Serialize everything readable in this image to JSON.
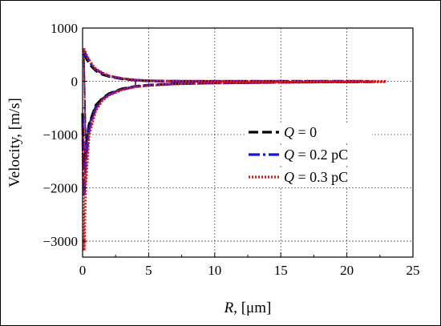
{
  "chart_data": {
    "type": "line",
    "xlabel": {
      "italic": "R",
      "rest": ", [μm]"
    },
    "ylabel": "Velocity, [m/s]",
    "xlim": [
      0,
      25
    ],
    "ylim": [
      -3300,
      1000
    ],
    "xticks": [
      0,
      5,
      10,
      15,
      20,
      25
    ],
    "yticks": [
      1000,
      0,
      -1000,
      -2000,
      -3000
    ],
    "ytick_labels": [
      "1000",
      "0",
      "−1000",
      "−2000",
      "−3000"
    ],
    "grid": true,
    "legend_position": "center-right",
    "series": [
      {
        "legend_italic": "Q",
        "legend_rest": " = 0",
        "color": "#000000",
        "dash": "12,5",
        "width": 3.2,
        "upper": [
          [
            0.1,
            520
          ],
          [
            0.3,
            420
          ],
          [
            0.6,
            300
          ],
          [
            1,
            200
          ],
          [
            1.5,
            130
          ],
          [
            2,
            90
          ],
          [
            3,
            45
          ],
          [
            4,
            20
          ],
          [
            5,
            8
          ],
          [
            7,
            2
          ],
          [
            10,
            0
          ],
          [
            15,
            0
          ],
          [
            21,
            0
          ]
        ],
        "lower": [
          [
            0.0,
            -600
          ],
          [
            0.05,
            -1200
          ],
          [
            0.12,
            -1540
          ],
          [
            0.25,
            -1200
          ],
          [
            0.5,
            -800
          ],
          [
            1,
            -450
          ],
          [
            1.5,
            -320
          ],
          [
            2,
            -230
          ],
          [
            3,
            -140
          ],
          [
            4,
            -95
          ],
          [
            5,
            -70
          ],
          [
            7,
            -45
          ],
          [
            10,
            -30
          ],
          [
            14,
            -20
          ],
          [
            18,
            -12
          ],
          [
            21,
            -10
          ]
        ]
      },
      {
        "legend_italic": "Q",
        "legend_rest": " = 0.2 pC",
        "color": "#1515e0",
        "dash": "14,4,3,4",
        "width": 3.2,
        "upper": [
          [
            0.1,
            580
          ],
          [
            0.3,
            470
          ],
          [
            0.6,
            340
          ],
          [
            1,
            220
          ],
          [
            1.5,
            150
          ],
          [
            2,
            100
          ],
          [
            3,
            50
          ],
          [
            4,
            22
          ],
          [
            5,
            9
          ],
          [
            7,
            2
          ],
          [
            10,
            0
          ],
          [
            15,
            0
          ],
          [
            22,
            0
          ]
        ],
        "lower": [
          [
            0.0,
            -700
          ],
          [
            0.05,
            -1500
          ],
          [
            0.12,
            -2150
          ],
          [
            0.25,
            -1500
          ],
          [
            0.5,
            -900
          ],
          [
            1,
            -500
          ],
          [
            1.5,
            -340
          ],
          [
            2,
            -250
          ],
          [
            3,
            -150
          ],
          [
            4,
            -100
          ],
          [
            5,
            -75
          ],
          [
            7,
            -48
          ],
          [
            10,
            -32
          ],
          [
            14,
            -22
          ],
          [
            18,
            -14
          ],
          [
            22,
            -10
          ]
        ]
      },
      {
        "legend_italic": "Q",
        "legend_rest": " = 0.3 pC",
        "color": "#e01515",
        "dash": "2,2",
        "width": 3.2,
        "upper": [
          [
            0.1,
            620
          ],
          [
            0.3,
            500
          ],
          [
            0.6,
            360
          ],
          [
            1,
            230
          ],
          [
            1.5,
            160
          ],
          [
            2,
            105
          ],
          [
            3,
            55
          ],
          [
            4,
            25
          ],
          [
            5,
            10
          ],
          [
            7,
            3
          ],
          [
            10,
            0
          ],
          [
            15,
            0
          ],
          [
            23,
            0
          ]
        ],
        "lower": [
          [
            0.0,
            -800
          ],
          [
            0.05,
            -1900
          ],
          [
            0.12,
            -3180
          ],
          [
            0.25,
            -1900
          ],
          [
            0.5,
            -1000
          ],
          [
            1,
            -550
          ],
          [
            1.5,
            -360
          ],
          [
            2,
            -260
          ],
          [
            3,
            -160
          ],
          [
            4,
            -105
          ],
          [
            5,
            -78
          ],
          [
            7,
            -50
          ],
          [
            10,
            -33
          ],
          [
            14,
            -22
          ],
          [
            18,
            -15
          ],
          [
            23,
            -10
          ]
        ]
      }
    ]
  }
}
